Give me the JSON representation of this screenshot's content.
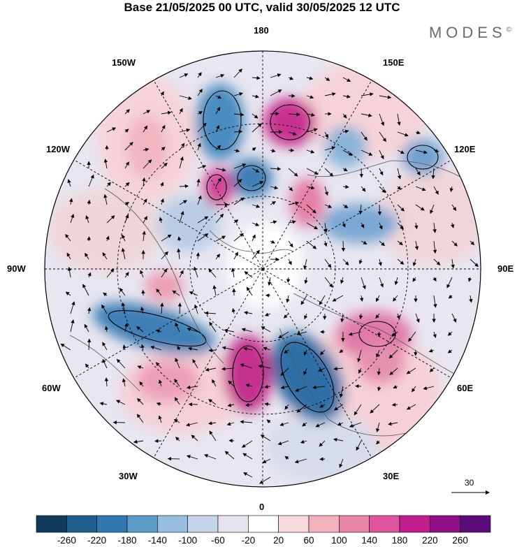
{
  "title": "Base 21/05/2025 00 UTC, valid 30/05/2025 12 UTC",
  "brand": "MODES",
  "brand_mark": "©",
  "longitude_labels": {
    "top": "180",
    "top_left": "150W",
    "top_right": "150E",
    "upper_left": "120W",
    "upper_right": "120E",
    "left": "90W",
    "right": "90E",
    "lower_left": "60W",
    "lower_right": "60E",
    "bottom_left": "30W",
    "bottom_right": "30E",
    "bottom": "0"
  },
  "vector_scale": {
    "label": "30"
  },
  "colorbar": {
    "ticks": [
      "-260",
      "-220",
      "-180",
      "-140",
      "-100",
      "-60",
      "-20",
      "20",
      "60",
      "100",
      "140",
      "180",
      "220",
      "260"
    ],
    "colors": [
      "#123a5c",
      "#1f5f8e",
      "#2f78b1",
      "#5b9cc9",
      "#97bedf",
      "#c5d6ea",
      "#e6e3ef",
      "#ffffff",
      "#f8d9dc",
      "#f3b1bb",
      "#ea84a7",
      "#de559e",
      "#c21e8e",
      "#8f0f86",
      "#5b0c7a"
    ]
  }
}
